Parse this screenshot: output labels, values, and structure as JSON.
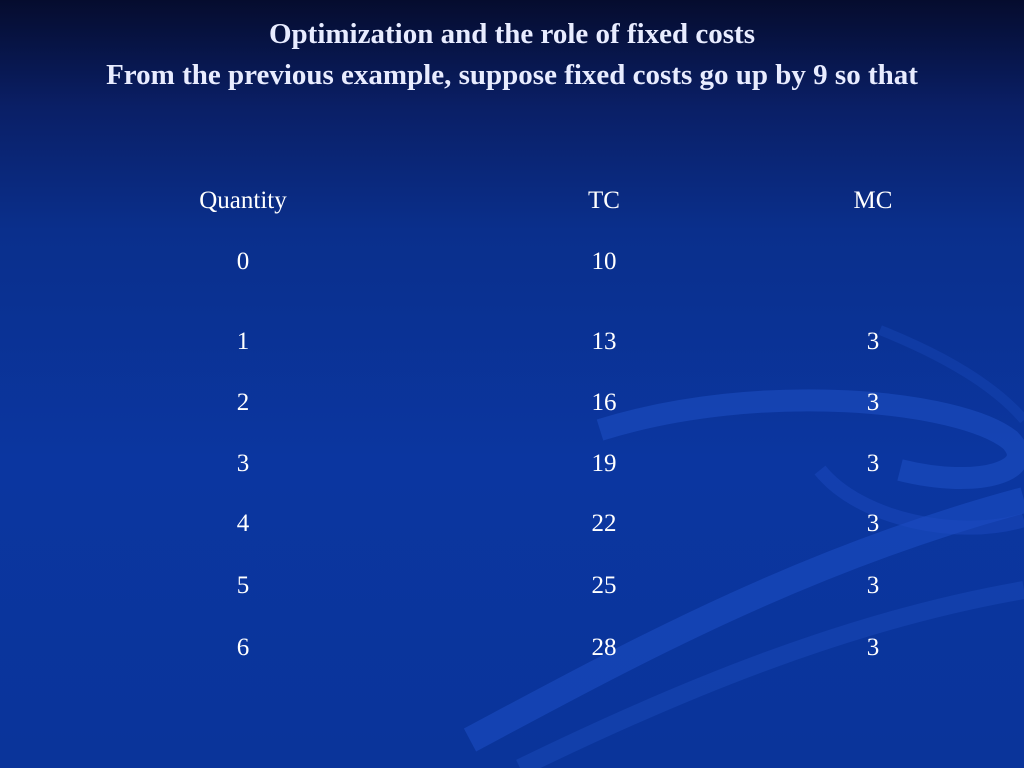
{
  "slide": {
    "title": "Optimization and the role of fixed costs",
    "subtitle": "From the previous example, suppose fixed costs go up by 9 so that"
  },
  "table": {
    "headers": [
      "Quantity",
      "TC",
      "MC"
    ],
    "rows": [
      [
        "0",
        "10",
        ""
      ],
      [
        "1",
        "13",
        "3"
      ],
      [
        "2",
        "16",
        "3"
      ],
      [
        "3",
        "19",
        "3"
      ],
      [
        "4",
        "22",
        "3"
      ],
      [
        "5",
        "25",
        "3"
      ],
      [
        "6",
        "28",
        "3"
      ]
    ]
  },
  "colors": {
    "background_top": "#050c2e",
    "background_main": "#0b36a0",
    "text": "#ffffff"
  }
}
